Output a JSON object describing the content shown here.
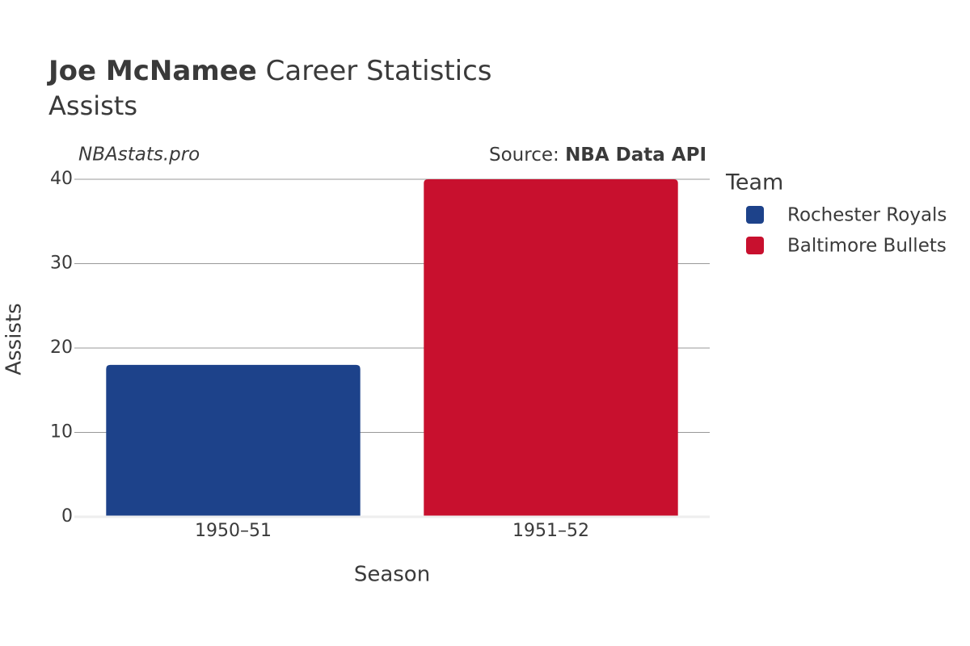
{
  "chart_data": {
    "type": "bar",
    "title_bold": "Joe McNamee",
    "title": "Career Statistics",
    "subtitle": "Assists",
    "watermark": "NBAstats.pro",
    "source_label": "Source:",
    "source": "NBA Data API",
    "x_label": "Season",
    "y_label": "Assists",
    "categories": [
      "1950–51",
      "1951–52"
    ],
    "series": [
      {
        "name": "Rochester Royals",
        "color": "#1d428a",
        "values": [
          18,
          null
        ]
      },
      {
        "name": "Baltimore Bullets",
        "color": "#c8102e",
        "values": [
          null,
          40
        ]
      }
    ],
    "ylim": [
      0,
      40
    ],
    "yticks": [
      0,
      10,
      20,
      30,
      40
    ],
    "grid": true,
    "legend_title": "Team",
    "legend_position": "right"
  }
}
